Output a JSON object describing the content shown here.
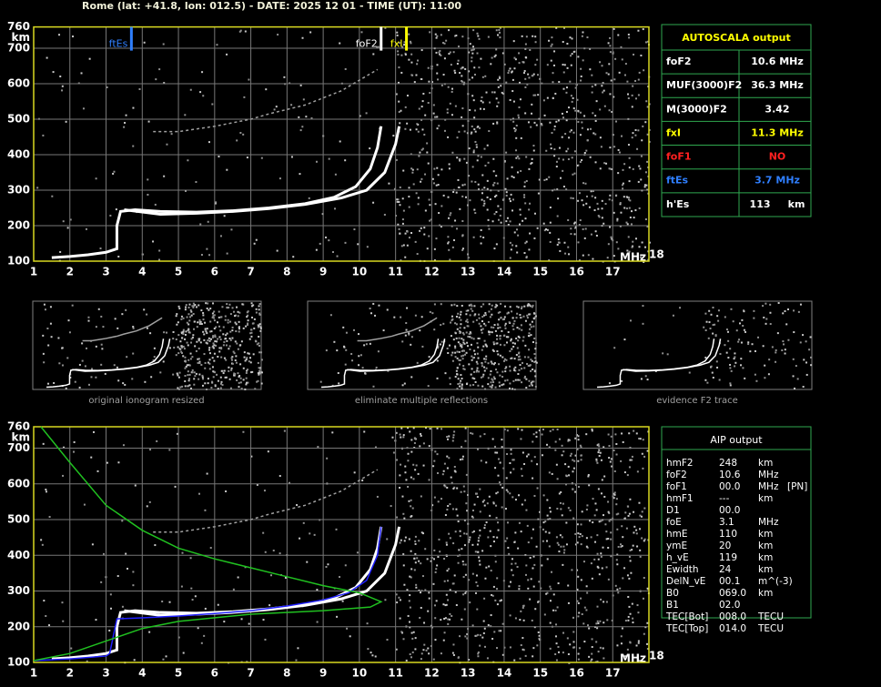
{
  "header": {
    "title": "Rome (lat: +41.8, lon: 012.5) - DATE: 2025 12 01 - TIME (UT): 11:00"
  },
  "chart_data": [
    {
      "type": "line",
      "x_label": "MHz",
      "y_label": "km",
      "xlim": [
        1,
        18
      ],
      "xticks": [
        1,
        2,
        3,
        4,
        5,
        6,
        7,
        8,
        9,
        10,
        11,
        12,
        13,
        14,
        15,
        16,
        17,
        18
      ],
      "ylim": [
        100,
        760
      ],
      "yticks": [
        100,
        200,
        300,
        400,
        500,
        600,
        700,
        760
      ],
      "grid": true,
      "frame_color": "#d8d820",
      "series": [
        {
          "color": "#ffffff",
          "x": [
            1.5,
            2,
            2.5,
            3,
            3.3,
            3.3,
            3.4,
            3.8,
            4.5,
            5.5,
            6.5,
            7.5,
            8.5,
            9.3,
            9.9,
            10.3,
            10.5,
            10.6
          ],
          "values": [
            110,
            113,
            118,
            125,
            135,
            200,
            240,
            245,
            240,
            238,
            242,
            250,
            262,
            280,
            310,
            360,
            420,
            480
          ]
        },
        {
          "color": "#ffffff",
          "x": [
            3.5,
            4.5,
            5.5,
            6.5,
            7.5,
            8.5,
            9.5,
            10.2,
            10.7,
            11,
            11.1
          ],
          "values": [
            245,
            232,
            235,
            240,
            248,
            260,
            278,
            300,
            350,
            430,
            480
          ]
        },
        {
          "color": "#a0a0a0",
          "x": [
            4.3,
            5,
            6,
            7,
            7.5,
            8.5,
            9.5,
            10.5
          ],
          "values": [
            465,
            465,
            480,
            500,
            515,
            540,
            580,
            640
          ]
        }
      ],
      "markers": [
        {
          "label": "ftEs",
          "x": 3.7,
          "color": "#2f7fff"
        },
        {
          "label": "foF2",
          "x": 10.6,
          "color": "#ffffff"
        },
        {
          "label": "fxI",
          "x": 11.3,
          "color": "#ffff00"
        }
      ]
    },
    {
      "type": "line",
      "x_label": "MHz",
      "y_label": "km",
      "xlim": [
        1,
        18
      ],
      "xticks": [
        1,
        2,
        3,
        4,
        5,
        6,
        7,
        8,
        9,
        10,
        11,
        12,
        13,
        14,
        15,
        16,
        17,
        18
      ],
      "ylim": [
        100,
        760
      ],
      "yticks": [
        100,
        200,
        300,
        400,
        500,
        600,
        700,
        760
      ],
      "grid": true,
      "frame_color": "#d8d820",
      "series": [
        {
          "color": "#ffffff",
          "x": [
            1.5,
            2,
            2.5,
            3,
            3.3,
            3.3,
            3.4,
            3.8,
            4.5,
            5.5,
            6.5,
            7.5,
            8.5,
            9.3,
            9.9,
            10.3,
            10.5,
            10.6
          ],
          "values": [
            110,
            113,
            118,
            125,
            135,
            200,
            240,
            245,
            240,
            238,
            242,
            250,
            262,
            280,
            310,
            360,
            420,
            480
          ]
        },
        {
          "color": "#ffffff",
          "x": [
            3.5,
            4.5,
            5.5,
            6.5,
            7.5,
            8.5,
            9.5,
            10.2,
            10.7,
            11,
            11.1
          ],
          "values": [
            245,
            232,
            235,
            240,
            248,
            260,
            278,
            300,
            350,
            430,
            480
          ]
        },
        {
          "color": "#a0a0a0",
          "x": [
            4.3,
            5,
            6,
            7,
            7.5,
            8.5,
            9.5,
            10.5
          ],
          "values": [
            465,
            465,
            480,
            500,
            515,
            540,
            580,
            640
          ]
        },
        {
          "color": "#2020ff",
          "x": [
            1,
            2,
            3,
            3.1,
            3.3,
            4,
            5,
            6,
            7,
            8,
            9,
            9.7,
            10.2,
            10.5,
            10.6
          ],
          "values": [
            105,
            110,
            118,
            125,
            222,
            225,
            230,
            237,
            245,
            258,
            275,
            295,
            330,
            400,
            480
          ]
        },
        {
          "color": "#20c020",
          "x": [
            1.2,
            2,
            3,
            4,
            5,
            6,
            7,
            8,
            9,
            10,
            10.6,
            10.3,
            9,
            7,
            5,
            4,
            3,
            2,
            1
          ],
          "values": [
            760,
            660,
            540,
            470,
            420,
            390,
            365,
            340,
            315,
            295,
            270,
            255,
            245,
            235,
            215,
            195,
            160,
            125,
            105
          ]
        }
      ]
    }
  ],
  "autoscala": {
    "title": "AUTOSCALA output",
    "rows": [
      {
        "label": "foF2",
        "value": "10.6 MHz",
        "color": "#ffffff"
      },
      {
        "label": "MUF(3000)F2",
        "value": "36.3 MHz",
        "color": "#ffffff"
      },
      {
        "label": "M(3000)F2",
        "value": "3.42",
        "color": "#ffffff"
      },
      {
        "label": "fxI",
        "value": "11.3 MHz",
        "color": "#ffff00"
      },
      {
        "label": "foF1",
        "value": "NO",
        "color": "#ff2020"
      },
      {
        "label": "ftEs",
        "value": "3.7 MHz",
        "color": "#2f7fff"
      },
      {
        "label": "h'Es",
        "value": "113     km",
        "color": "#ffffff"
      }
    ]
  },
  "processing": {
    "panels": [
      {
        "caption": "original ionogram resized"
      },
      {
        "caption": "eliminate multiple reflections"
      },
      {
        "caption": "evidence F2 trace"
      }
    ]
  },
  "aip": {
    "title": "AIP output",
    "rows": [
      [
        "hmF2",
        "248",
        "km"
      ],
      [
        "foF2",
        "10.6",
        "MHz"
      ],
      [
        "foF1",
        "00.0",
        "MHz",
        "[PN]"
      ],
      [
        "hmF1",
        "---",
        "km"
      ],
      [
        "D1",
        "00.0"
      ],
      [
        "foE",
        "3.1",
        "MHz"
      ],
      [
        "hmE",
        "110",
        "km"
      ],
      [
        "ymE",
        "20",
        "km"
      ],
      [
        "h_vE",
        "119",
        "km"
      ],
      [
        "Ewidth",
        "24",
        "km"
      ],
      [
        "DelN_vE",
        "00.1",
        "m^(-3)"
      ],
      [
        "B0",
        "069.0",
        "km"
      ],
      [
        "B1",
        "02.0"
      ],
      [
        "TEC[Bot]",
        "008.0",
        "TECU"
      ],
      [
        "TEC[Top]",
        "014.0",
        "TECU"
      ]
    ]
  }
}
